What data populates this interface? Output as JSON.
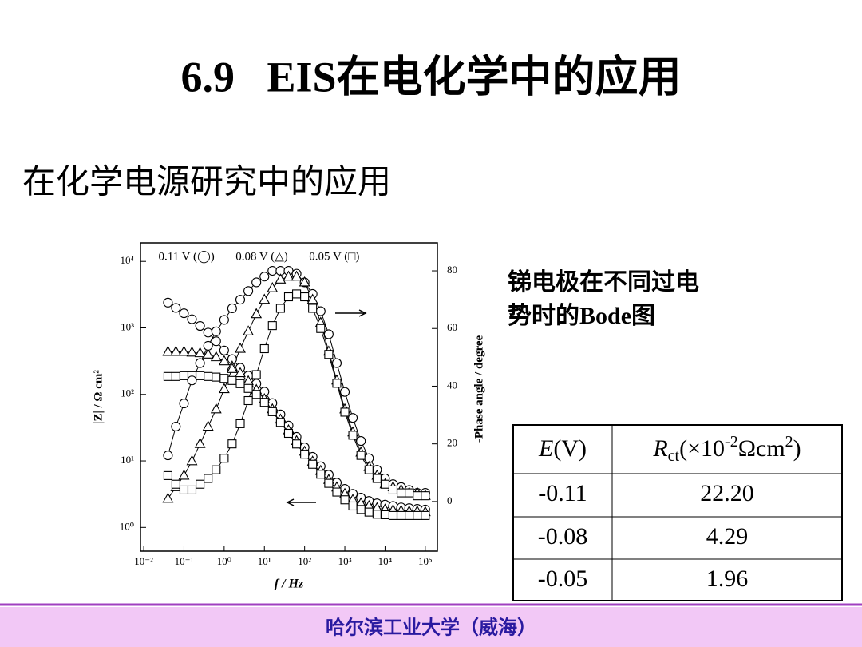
{
  "header": {
    "title": "6.9   EIS在电化学中的应用",
    "subtitle": "在化学电源研究中的应用"
  },
  "caption": {
    "lines": [
      "锑电极在不同过电",
      "势时的Bode图"
    ]
  },
  "table": {
    "header": [
      {
        "symbol": "E",
        "rest": "(V)"
      },
      {
        "symbol": "R",
        "sub": "ct",
        "rest": "(×10",
        "sup": "-2",
        "unit": "Ωcm",
        "sup2": "2",
        "close": ")"
      }
    ],
    "rows": [
      [
        "-0.11",
        "22.20"
      ],
      [
        "-0.08",
        "4.29"
      ],
      [
        "-0.05",
        "1.96"
      ]
    ]
  },
  "footer": {
    "text": "哈尔滨工业大学（威海）"
  },
  "chart_data": {
    "type": "line",
    "xlog": true,
    "ylog": true,
    "x_label": "f / Hz",
    "y_label": "|Z| / Ω cm²",
    "y2_label": "-Phase angle / degree",
    "xlim": [
      0.0083,
      200000
    ],
    "xticks": [
      {
        "value": 0.01,
        "label": "10⁻²"
      },
      {
        "value": 0.1,
        "label": "10⁻¹"
      },
      {
        "value": 1,
        "label": "10⁰"
      },
      {
        "value": 10,
        "label": "10¹"
      },
      {
        "value": 100,
        "label": "10²"
      },
      {
        "value": 1000,
        "label": "10³"
      },
      {
        "value": 10000,
        "label": "10⁴"
      },
      {
        "value": 100000,
        "label": "10⁵"
      }
    ],
    "ylim": [
      0.44,
      19000
    ],
    "yticks": [
      {
        "value": 1,
        "label": "10⁰"
      },
      {
        "value": 10,
        "label": "10¹"
      },
      {
        "value": 100,
        "label": "10²"
      },
      {
        "value": 1000,
        "label": "10³"
      },
      {
        "value": 10000,
        "label": "10⁴"
      }
    ],
    "y2lim": [
      -17.2,
      89.7
    ],
    "y2ticks": [
      0,
      20,
      40,
      60,
      80
    ],
    "x": [
      0.04,
      0.063,
      0.1,
      0.158,
      0.251,
      0.398,
      0.631,
      1,
      1.58,
      2.51,
      3.98,
      6.31,
      10,
      15.8,
      25.1,
      39.8,
      63.1,
      100,
      158,
      251,
      398,
      631,
      1000,
      1580,
      2510,
      3980,
      6310,
      10000,
      15800,
      25100,
      39800,
      63100,
      100000
    ],
    "series": [
      {
        "name": "−0.11 V (◯)",
        "marker": "circle",
        "color": "#000000",
        "values": [
          2400,
          2000,
          1660,
          1350,
          1070,
          850,
          630,
          457,
          339,
          251,
          191,
          145,
          110,
          74,
          50,
          34,
          23,
          16,
          11.5,
          8.3,
          6.2,
          4.7,
          3.8,
          3.2,
          2.8,
          2.5,
          2.3,
          2.2,
          2.1,
          2.0,
          1.95,
          1.9,
          1.86
        ]
      },
      {
        "name": "−0.08 V (△)",
        "marker": "triangle",
        "color": "#000000",
        "values": [
          437,
          437,
          437,
          427,
          417,
          398,
          363,
          316,
          263,
          209,
          158,
          117,
          85,
          60,
          42,
          29,
          20,
          13.8,
          9.8,
          7.1,
          5.2,
          4.0,
          3.2,
          2.6,
          2.3,
          2.1,
          1.95,
          1.86,
          1.82,
          1.78,
          1.74,
          1.74,
          1.7
        ]
      },
      {
        "name": "−0.05 V (□)",
        "marker": "square",
        "color": "#000000",
        "values": [
          186,
          186,
          191,
          191,
          191,
          186,
          182,
          174,
          162,
          145,
          123,
          100,
          76,
          55,
          38,
          26,
          18,
          12.6,
          8.9,
          6.3,
          4.6,
          3.4,
          2.6,
          2.1,
          1.86,
          1.7,
          1.58,
          1.55,
          1.51,
          1.51,
          1.51,
          1.51,
          1.51
        ]
      },
      {
        "axis": "y2",
        "marker": "circle",
        "color": "#000000",
        "values": [
          16,
          26,
          34,
          42,
          48,
          54,
          59,
          63,
          67,
          70,
          73,
          76,
          78,
          80,
          80,
          80,
          79,
          76,
          72,
          66,
          58,
          48,
          38,
          29,
          21,
          15,
          11,
          8,
          6,
          5,
          4,
          3,
          3
        ]
      },
      {
        "axis": "y2",
        "marker": "triangle",
        "color": "#000000",
        "values": [
          1,
          5,
          9,
          14,
          20,
          26,
          32,
          39,
          46,
          53,
          59,
          65,
          70,
          74,
          77,
          78,
          78,
          76,
          70,
          62,
          52,
          42,
          32,
          24,
          17,
          12,
          9,
          6,
          5,
          4,
          3,
          3,
          2
        ]
      },
      {
        "axis": "y2",
        "marker": "square",
        "color": "#000000",
        "values": [
          9,
          6,
          4,
          4,
          6,
          8,
          11,
          15,
          20,
          27,
          35,
          44,
          53,
          61,
          67,
          71,
          72,
          71,
          67,
          60,
          51,
          41,
          31,
          23,
          16,
          11,
          8,
          6,
          4,
          3,
          3,
          2,
          2
        ]
      }
    ]
  }
}
